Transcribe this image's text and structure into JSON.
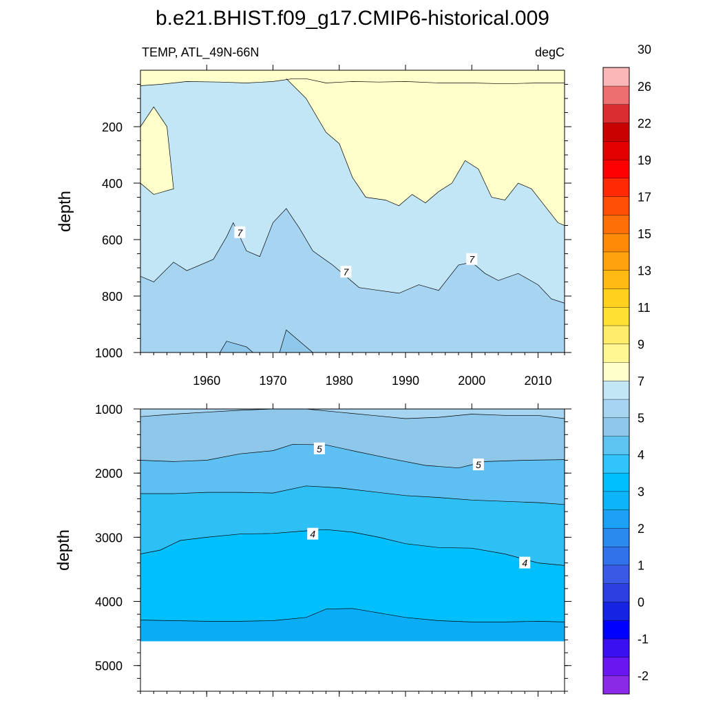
{
  "title": "b.e21.BHIST.f09_g17.CMIP6-historical.009",
  "chart_data": [
    {
      "type": "heatmap",
      "panel": "upper",
      "left_label": "TEMP, ATL_49N-66N",
      "right_label": "degC",
      "ylabel": "depth",
      "xlim": [
        1950,
        2014
      ],
      "ylim": [
        1000,
        0
      ],
      "x_ticks": [
        1960,
        1970,
        1980,
        1990,
        2000,
        2010
      ],
      "x_tick_labels": [
        "1960",
        "1970",
        "1980",
        "1990",
        "2000",
        "2010"
      ],
      "y_ticks": [
        200,
        400,
        600,
        800,
        1000
      ],
      "y_tick_labels": [
        "200",
        "400",
        "600",
        "800",
        "1000"
      ],
      "contour_labels": [
        {
          "text": "7",
          "x": 1965,
          "y": 575
        },
        {
          "text": "7",
          "x": 1981,
          "y": 715
        },
        {
          "text": "7",
          "x": 2000,
          "y": 670
        }
      ],
      "warm_top_boundary": [
        [
          1950,
          55
        ],
        [
          1953,
          50
        ],
        [
          1957,
          40
        ],
        [
          1962,
          42
        ],
        [
          1966,
          45
        ],
        [
          1970,
          40
        ],
        [
          1973,
          30
        ],
        [
          1975,
          30
        ],
        [
          1978,
          45
        ],
        [
          1982,
          40
        ],
        [
          1986,
          42
        ],
        [
          1990,
          40
        ],
        [
          1995,
          45
        ],
        [
          2000,
          45
        ],
        [
          2005,
          48
        ],
        [
          2010,
          45
        ],
        [
          2014,
          45
        ]
      ],
      "seven_isotherm": [
        [
          1950,
          730
        ],
        [
          1952,
          750
        ],
        [
          1955,
          680
        ],
        [
          1957,
          710
        ],
        [
          1961,
          670
        ],
        [
          1963,
          590
        ],
        [
          1964,
          540
        ],
        [
          1966,
          640
        ],
        [
          1968,
          660
        ],
        [
          1970,
          540
        ],
        [
          1972,
          490
        ],
        [
          1974,
          560
        ],
        [
          1976,
          640
        ],
        [
          1979,
          690
        ],
        [
          1983,
          770
        ],
        [
          1986,
          780
        ],
        [
          1989,
          790
        ],
        [
          1992,
          760
        ],
        [
          1995,
          780
        ],
        [
          1998,
          690
        ],
        [
          2000,
          680
        ],
        [
          2002,
          720
        ],
        [
          2004,
          745
        ],
        [
          2007,
          720
        ],
        [
          2010,
          760
        ],
        [
          2012,
          810
        ],
        [
          2014,
          825
        ]
      ],
      "six_isotherm": [
        [
          1962,
          1000
        ],
        [
          1963,
          960
        ],
        [
          1966,
          980
        ],
        [
          1967,
          1000
        ],
        [
          1971,
          1000
        ],
        [
          1972,
          920
        ],
        [
          1974,
          960
        ],
        [
          1976,
          1000
        ]
      ],
      "nine_isotherm_main": [
        [
          1972,
          30
        ],
        [
          1975,
          100
        ],
        [
          1978,
          220
        ],
        [
          1980,
          260
        ],
        [
          1982,
          380
        ],
        [
          1984,
          450
        ],
        [
          1987,
          460
        ],
        [
          1989,
          480
        ],
        [
          1991,
          440
        ],
        [
          1993,
          470
        ],
        [
          1995,
          430
        ],
        [
          1997,
          400
        ],
        [
          1999,
          320
        ],
        [
          2001,
          350
        ],
        [
          2003,
          450
        ],
        [
          2005,
          460
        ],
        [
          2007,
          400
        ],
        [
          2009,
          420
        ],
        [
          2011,
          480
        ],
        [
          2013,
          540
        ],
        [
          2014,
          550
        ]
      ],
      "nine_isotherm_left": [
        [
          1950,
          200
        ],
        [
          1952,
          130
        ],
        [
          1954,
          200
        ],
        [
          1955,
          420
        ],
        [
          1952,
          440
        ],
        [
          1950,
          400
        ]
      ]
    },
    {
      "type": "heatmap",
      "panel": "lower",
      "ylabel": "depth",
      "xlim": [
        1950,
        2014
      ],
      "ylim": [
        5400,
        1000
      ],
      "x_ticks": [
        1960,
        1970,
        1980,
        1990,
        2000,
        2010
      ],
      "y_ticks": [
        1000,
        2000,
        3000,
        4000,
        5000
      ],
      "y_tick_labels": [
        "1000",
        "2000",
        "3000",
        "4000",
        "5000"
      ],
      "bottom_depth": 4620,
      "contour_labels": [
        {
          "text": "5",
          "x": 1977,
          "y": 1620
        },
        {
          "text": "5",
          "x": 2001,
          "y": 1870
        },
        {
          "text": "4",
          "x": 1976,
          "y": 2950
        },
        {
          "text": "4",
          "x": 2008,
          "y": 3400
        }
      ],
      "isotherms": [
        {
          "level": 6,
          "fill_below": "#8ec7ea",
          "points": [
            [
              1950,
              1120
            ],
            [
              1955,
              1080
            ],
            [
              1960,
              1050
            ],
            [
              1965,
              1020
            ],
            [
              1970,
              1000
            ],
            [
              1975,
              1000
            ],
            [
              1980,
              1050
            ],
            [
              1985,
              1100
            ],
            [
              1990,
              1150
            ],
            [
              1995,
              1130
            ],
            [
              2000,
              1080
            ],
            [
              2005,
              1100
            ],
            [
              2010,
              1100
            ],
            [
              2014,
              1150
            ]
          ]
        },
        {
          "level": 5,
          "fill_below": "#5ec0f2",
          "points": [
            [
              1950,
              1800
            ],
            [
              1955,
              1820
            ],
            [
              1960,
              1800
            ],
            [
              1965,
              1700
            ],
            [
              1970,
              1650
            ],
            [
              1973,
              1550
            ],
            [
              1978,
              1560
            ],
            [
              1982,
              1650
            ],
            [
              1988,
              1780
            ],
            [
              1993,
              1880
            ],
            [
              1998,
              1920
            ],
            [
              2002,
              1820
            ],
            [
              2008,
              1800
            ],
            [
              2014,
              1790
            ]
          ]
        },
        {
          "level": 4.5,
          "fill_below": "#2ebff4",
          "points": [
            [
              1950,
              2320
            ],
            [
              1955,
              2320
            ],
            [
              1960,
              2300
            ],
            [
              1965,
              2300
            ],
            [
              1970,
              2310
            ],
            [
              1975,
              2200
            ],
            [
              1980,
              2230
            ],
            [
              1985,
              2290
            ],
            [
              1990,
              2350
            ],
            [
              1995,
              2380
            ],
            [
              2000,
              2420
            ],
            [
              2005,
              2440
            ],
            [
              2010,
              2460
            ],
            [
              2014,
              2490
            ]
          ]
        },
        {
          "level": 4,
          "fill_below": "#00bfff",
          "points": [
            [
              1950,
              3260
            ],
            [
              1953,
              3200
            ],
            [
              1956,
              3050
            ],
            [
              1960,
              3000
            ],
            [
              1965,
              2950
            ],
            [
              1970,
              2940
            ],
            [
              1975,
              2900
            ],
            [
              1978,
              2880
            ],
            [
              1982,
              2920
            ],
            [
              1986,
              3000
            ],
            [
              1990,
              3100
            ],
            [
              1995,
              3160
            ],
            [
              2000,
              3170
            ],
            [
              2005,
              3260
            ],
            [
              2010,
              3400
            ],
            [
              2014,
              3440
            ]
          ]
        },
        {
          "level": 3.5,
          "fill_below": "#0aacf5",
          "points": [
            [
              1950,
              4290
            ],
            [
              1955,
              4300
            ],
            [
              1960,
              4310
            ],
            [
              1965,
              4310
            ],
            [
              1970,
              4300
            ],
            [
              1975,
              4250
            ],
            [
              1978,
              4120
            ],
            [
              1982,
              4110
            ],
            [
              1986,
              4180
            ],
            [
              1990,
              4250
            ],
            [
              1995,
              4300
            ],
            [
              2000,
              4320
            ],
            [
              2005,
              4320
            ],
            [
              2010,
              4310
            ],
            [
              2014,
              4320
            ]
          ]
        }
      ]
    }
  ],
  "colorbar": {
    "labels": [
      "-2",
      "-1",
      "0",
      "1",
      "2",
      "3",
      "4",
      "5",
      "7",
      "9",
      "11",
      "13",
      "15",
      "17",
      "19",
      "22",
      "26",
      "30"
    ],
    "colors": [
      "#8b2ae6",
      "#6a16f0",
      "#3b10f0",
      "#0000ff",
      "#1524e0",
      "#2b3fe0",
      "#3a5ae6",
      "#2f72e9",
      "#2a8aee",
      "#1ca0f6",
      "#0eb4f8",
      "#00bfff",
      "#30c4fb",
      "#5dc4f2",
      "#8ec7ea",
      "#a7d5f1",
      "#c2e6f6",
      "#ffffcc",
      "#fff791",
      "#ffec6a",
      "#ffe033",
      "#ffd01d",
      "#ffba14",
      "#ffa20e",
      "#ff8a08",
      "#ff6f07",
      "#ff4f06",
      "#ff2a04",
      "#ff0000",
      "#e50000",
      "#c80000",
      "#da2d30",
      "#ee6f70",
      "#fbb6b7"
    ]
  }
}
